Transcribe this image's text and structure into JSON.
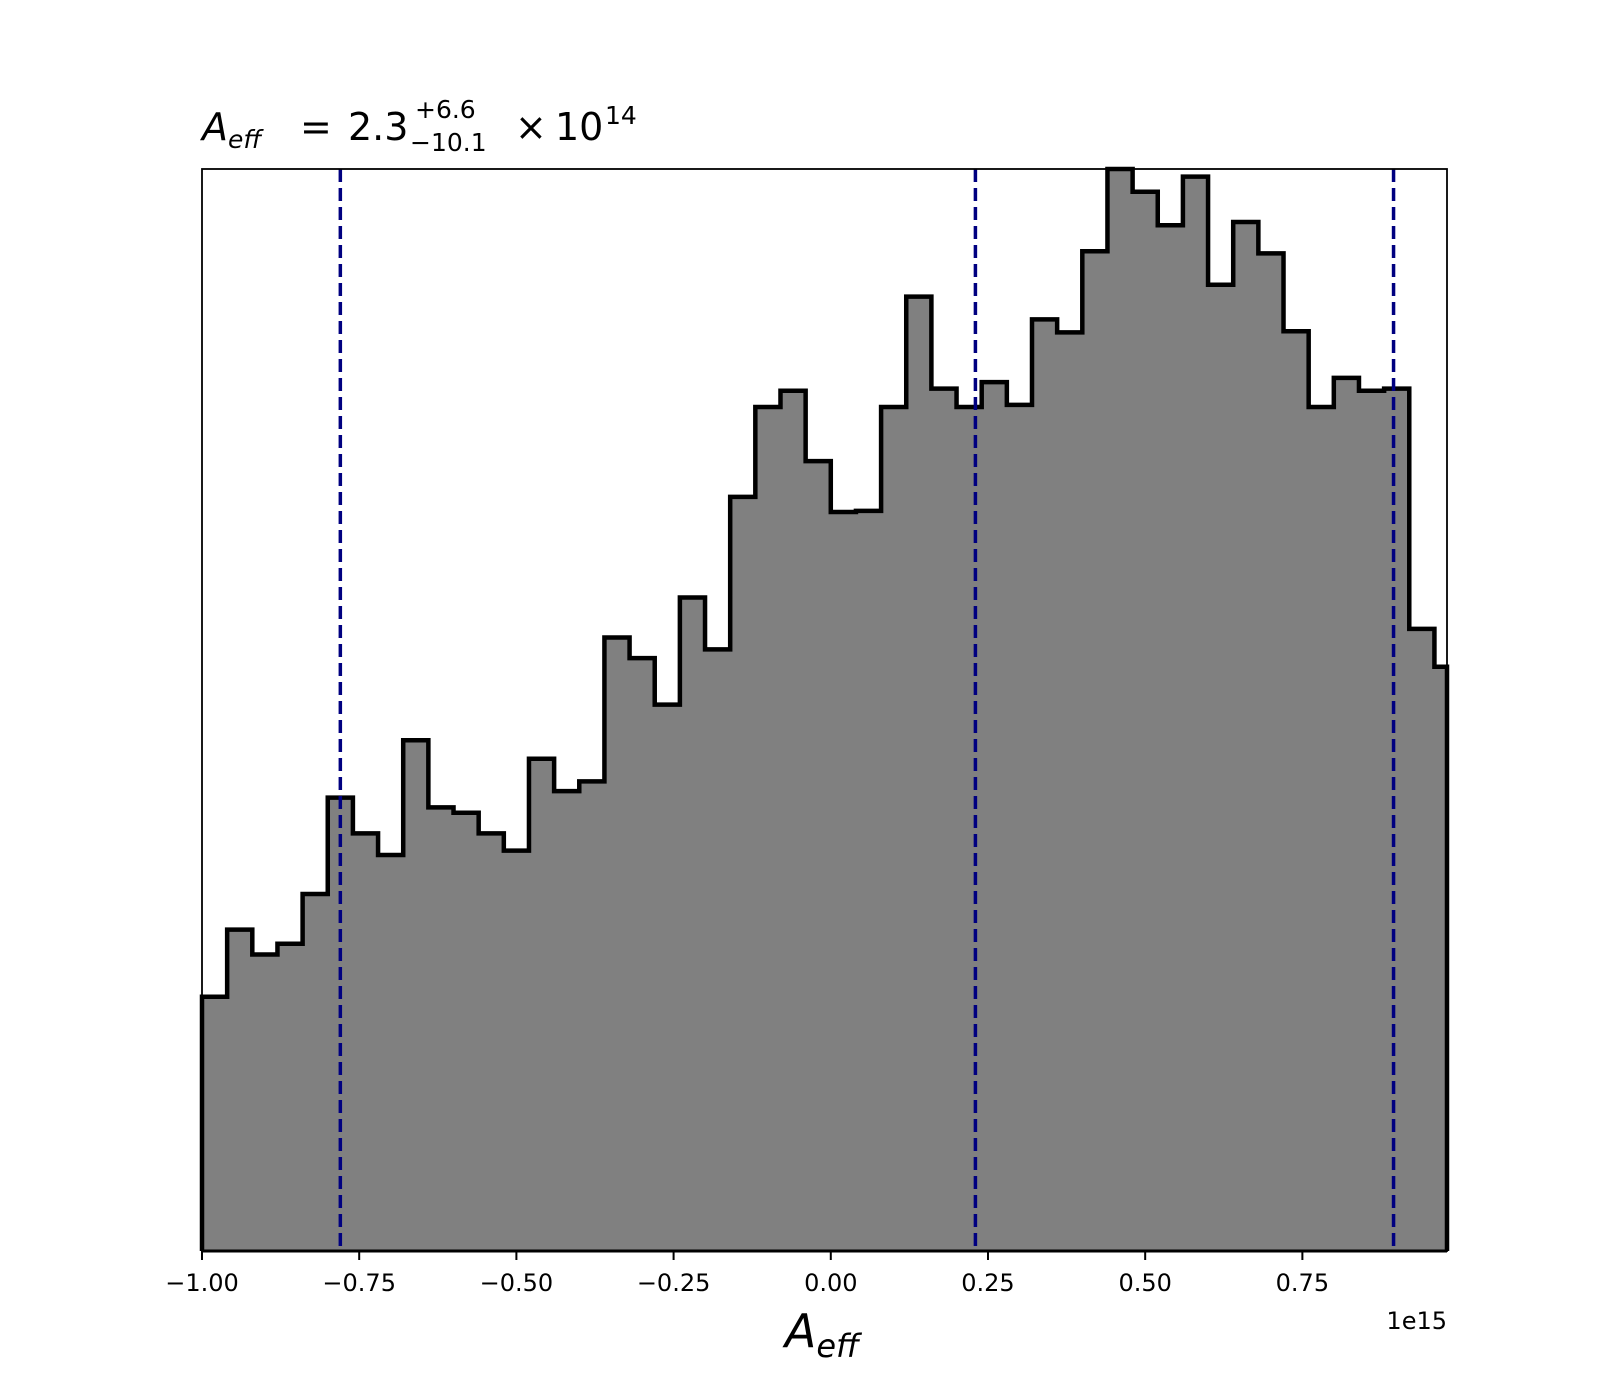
{
  "chart_data": {
    "type": "histogram",
    "title": {
      "symbol": "A",
      "symbol_subscript": "eff",
      "equals": "=",
      "value": "2.3",
      "upper": "+6.6",
      "lower": "−10.1",
      "times": "×",
      "base": "10",
      "exponent": "14"
    },
    "xlabel": {
      "symbol": "A",
      "subscript": "eff"
    },
    "ylabel": "",
    "x_offset_text": "1e15",
    "xlim": [
      -1.0,
      0.98
    ],
    "ylim": [
      0,
      1.0
    ],
    "xticks": [
      -1.0,
      -0.75,
      -0.5,
      -0.25,
      0.0,
      0.25,
      0.5,
      0.75
    ],
    "xtick_labels": [
      "−1.00",
      "−0.75",
      "−0.50",
      "−0.25",
      "0.00",
      "0.25",
      "0.50",
      "0.75"
    ],
    "show_yticks": false,
    "grid": false,
    "bin_edges": [
      -1.0,
      -0.96,
      -0.92,
      -0.88,
      -0.84,
      -0.8,
      -0.76,
      -0.72,
      -0.68,
      -0.64,
      -0.6,
      -0.56,
      -0.52,
      -0.48,
      -0.44,
      -0.4,
      -0.36,
      -0.32,
      -0.28,
      -0.24,
      -0.2,
      -0.16,
      -0.12,
      -0.08,
      -0.04,
      0.0,
      0.04,
      0.08,
      0.12,
      0.16,
      0.2,
      0.24,
      0.28,
      0.32,
      0.36,
      0.4,
      0.44,
      0.48,
      0.52,
      0.56,
      0.6,
      0.64,
      0.68,
      0.72,
      0.76,
      0.8,
      0.84,
      0.88,
      0.92,
      0.96,
      0.98
    ],
    "counts": [
      0.235,
      0.297,
      0.274,
      0.284,
      0.33,
      0.419,
      0.386,
      0.366,
      0.472,
      0.41,
      0.405,
      0.386,
      0.37,
      0.455,
      0.425,
      0.434,
      0.567,
      0.548,
      0.505,
      0.604,
      0.556,
      0.697,
      0.78,
      0.795,
      0.73,
      0.683,
      0.684,
      0.78,
      0.882,
      0.797,
      0.78,
      0.803,
      0.782,
      0.861,
      0.849,
      0.924,
      1.0,
      0.979,
      0.948,
      0.993,
      0.893,
      0.951,
      0.922,
      0.85,
      0.78,
      0.807,
      0.795,
      0.797,
      0.575,
      0.54
    ],
    "bar_color": "#808080",
    "edge_color": "#000000",
    "vlines": [
      -0.78,
      0.23,
      0.895
    ],
    "vline_color": "#000080",
    "vline_style": "dashed"
  }
}
